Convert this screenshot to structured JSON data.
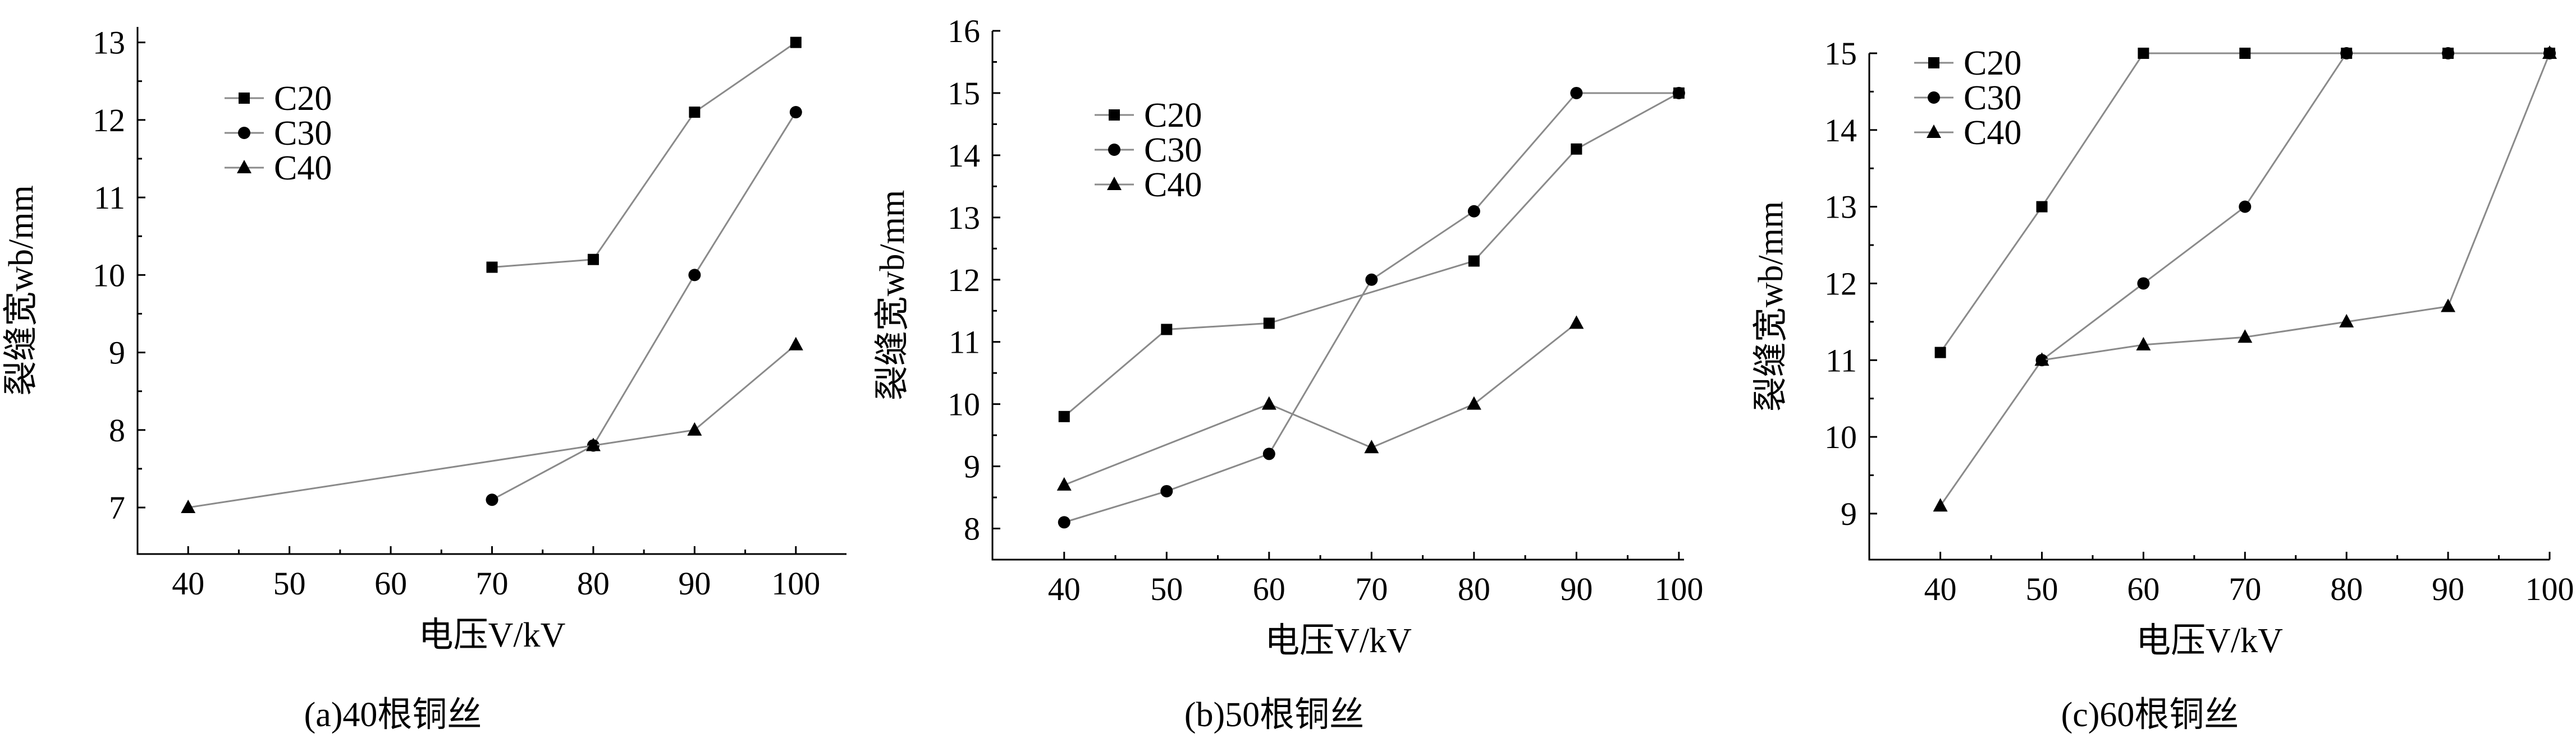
{
  "chart_data": [
    {
      "type": "line",
      "caption": "(a)40根铜丝",
      "xlabel": "电压V/kV",
      "ylabel": "裂缝宽wb/mm",
      "xlim": [
        35,
        105
      ],
      "ylim": [
        6.4,
        13.2
      ],
      "xticks": [
        40,
        50,
        60,
        70,
        80,
        90,
        100
      ],
      "yticks": [
        7,
        8,
        9,
        10,
        11,
        12,
        13
      ],
      "legend_position": "top-left",
      "grid": false,
      "series": [
        {
          "name": "C20",
          "marker": "square",
          "x": [
            70,
            80,
            90,
            100
          ],
          "y": [
            10.1,
            10.2,
            12.1,
            13.0
          ]
        },
        {
          "name": "C30",
          "marker": "circle",
          "x": [
            70,
            80,
            90,
            100
          ],
          "y": [
            7.1,
            7.8,
            10.0,
            12.1
          ]
        },
        {
          "name": "C40",
          "marker": "triangle",
          "x": [
            40,
            80,
            90,
            100
          ],
          "y": [
            7.0,
            7.8,
            8.0,
            9.1
          ]
        }
      ]
    },
    {
      "type": "line",
      "caption": "(b)50根铜丝",
      "xlabel": "电压V/kV",
      "ylabel": "裂缝宽wb/mm",
      "xlim": [
        33,
        100.5
      ],
      "ylim": [
        7.5,
        16
      ],
      "xticks": [
        40,
        50,
        60,
        70,
        80,
        90,
        100
      ],
      "yticks": [
        8,
        9,
        10,
        11,
        12,
        13,
        14,
        15,
        16
      ],
      "legend_position": "top-left",
      "grid": false,
      "series": [
        {
          "name": "C20",
          "marker": "square",
          "x": [
            40,
            50,
            60,
            80,
            90,
            100
          ],
          "y": [
            9.8,
            11.2,
            11.3,
            12.3,
            14.1,
            15.0
          ]
        },
        {
          "name": "C30",
          "marker": "circle",
          "x": [
            40,
            50,
            60,
            70,
            80,
            90,
            100
          ],
          "y": [
            8.1,
            8.6,
            9.2,
            12.0,
            13.1,
            15.0,
            15.0
          ]
        },
        {
          "name": "C40",
          "marker": "triangle",
          "x": [
            40,
            60,
            70,
            80,
            90
          ],
          "y": [
            8.7,
            10.0,
            9.3,
            10.0,
            11.3
          ]
        }
      ]
    },
    {
      "type": "line",
      "caption": "(c)60根铜丝",
      "xlabel": "电压V/kV",
      "ylabel": "裂缝宽wb/mm",
      "xlim": [
        33,
        100
      ],
      "ylim": [
        8.4,
        15
      ],
      "xticks": [
        40,
        50,
        60,
        70,
        80,
        90,
        100
      ],
      "yticks": [
        9,
        10,
        11,
        12,
        13,
        14,
        15
      ],
      "legend_position": "top-left",
      "grid": false,
      "series": [
        {
          "name": "C20",
          "marker": "square",
          "x": [
            40,
            50,
            60,
            70,
            80,
            90,
            100
          ],
          "y": [
            11.1,
            13.0,
            15.0,
            15.0,
            15.0,
            15.0,
            15.0
          ]
        },
        {
          "name": "C30",
          "marker": "circle",
          "x": [
            50,
            60,
            70,
            80,
            90,
            100
          ],
          "y": [
            11.0,
            12.0,
            13.0,
            15.0,
            15.0,
            15.0
          ]
        },
        {
          "name": "C40",
          "marker": "triangle",
          "x": [
            40,
            50,
            60,
            70,
            80,
            90,
            100
          ],
          "y": [
            9.1,
            11.0,
            11.2,
            11.3,
            11.5,
            11.7,
            15.0
          ]
        }
      ]
    }
  ]
}
